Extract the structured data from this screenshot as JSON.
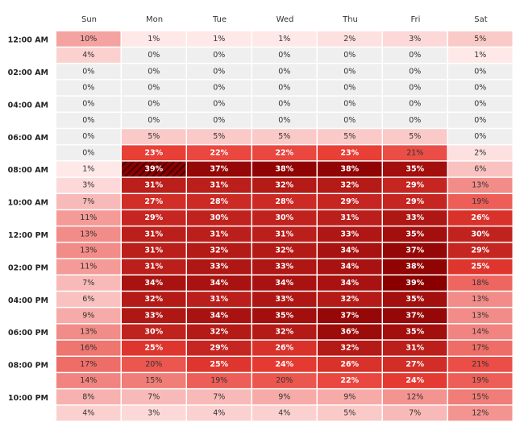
{
  "chart_data": {
    "type": "heatmap",
    "days": [
      "Sun",
      "Mon",
      "Tue",
      "Wed",
      "Thu",
      "Fri",
      "Sat"
    ],
    "time_labels": [
      "12:00 AM",
      "",
      "02:00 AM",
      "",
      "04:00 AM",
      "",
      "06:00 AM",
      "",
      "08:00 AM",
      "",
      "10:00 AM",
      "",
      "12:00 PM",
      "",
      "02:00 PM",
      "",
      "04:00 PM",
      "",
      "06:00 PM",
      "",
      "08:00 PM",
      "",
      "10:00 PM",
      ""
    ],
    "value_format": "{v}%",
    "max_value": 39,
    "highlight_cell": {
      "row": 8,
      "col": 1
    },
    "values": [
      [
        10,
        1,
        1,
        1,
        2,
        3,
        5
      ],
      [
        4,
        0,
        0,
        0,
        0,
        0,
        1
      ],
      [
        0,
        0,
        0,
        0,
        0,
        0,
        0
      ],
      [
        0,
        0,
        0,
        0,
        0,
        0,
        0
      ],
      [
        0,
        0,
        0,
        0,
        0,
        0,
        0
      ],
      [
        0,
        0,
        0,
        0,
        0,
        0,
        0
      ],
      [
        0,
        5,
        5,
        5,
        5,
        5,
        0
      ],
      [
        0,
        23,
        22,
        22,
        23,
        21,
        2
      ],
      [
        1,
        39,
        37,
        38,
        38,
        35,
        6
      ],
      [
        3,
        31,
        31,
        32,
        32,
        29,
        13
      ],
      [
        7,
        27,
        28,
        28,
        29,
        29,
        19
      ],
      [
        11,
        29,
        30,
        30,
        31,
        33,
        26
      ],
      [
        13,
        31,
        31,
        31,
        33,
        35,
        30
      ],
      [
        13,
        31,
        32,
        32,
        34,
        37,
        29
      ],
      [
        11,
        31,
        33,
        33,
        34,
        38,
        25
      ],
      [
        7,
        34,
        34,
        34,
        34,
        39,
        18
      ],
      [
        6,
        32,
        31,
        33,
        32,
        35,
        13
      ],
      [
        9,
        33,
        34,
        35,
        37,
        37,
        13
      ],
      [
        13,
        30,
        32,
        32,
        36,
        35,
        14
      ],
      [
        16,
        25,
        29,
        26,
        32,
        31,
        17
      ],
      [
        17,
        20,
        25,
        24,
        26,
        27,
        21
      ],
      [
        14,
        15,
        19,
        20,
        22,
        24,
        19
      ],
      [
        8,
        7,
        7,
        9,
        9,
        12,
        15
      ],
      [
        4,
        3,
        4,
        4,
        5,
        7,
        12
      ]
    ],
    "colors": {
      "zero": "#efefef",
      "low": "#fff0f0",
      "high": "#8a0000",
      "grid": "#ffffff",
      "text_dark": "#333333",
      "text_light": "#ffffff"
    }
  }
}
